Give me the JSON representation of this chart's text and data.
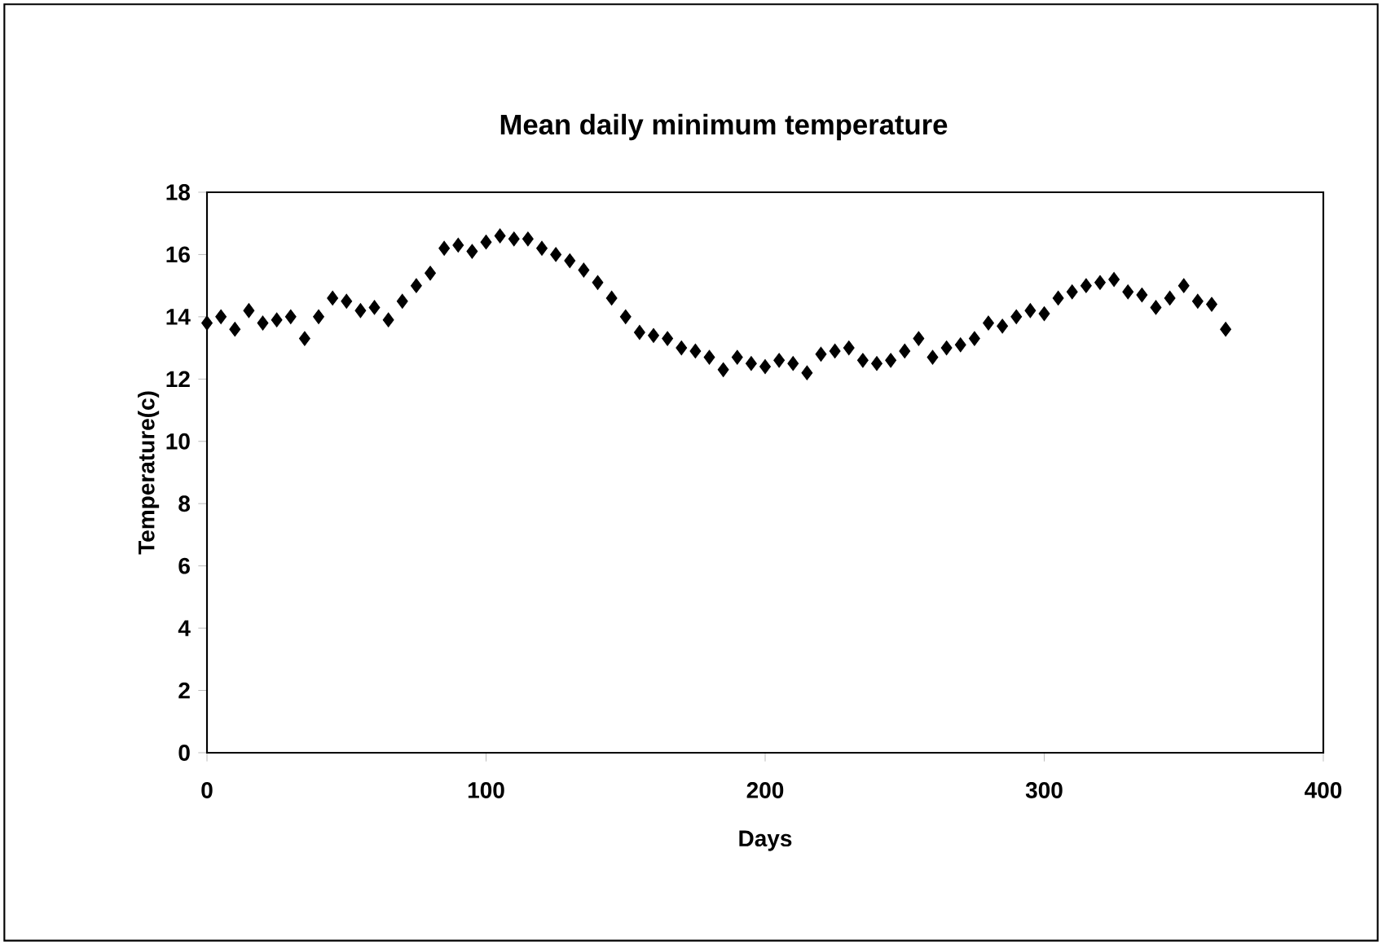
{
  "chart_data": {
    "type": "scatter",
    "title": "Mean daily minimum temperature",
    "xlabel": "Days",
    "ylabel": "Temperature(c)",
    "x": [
      0,
      5,
      10,
      15,
      20,
      25,
      30,
      35,
      40,
      45,
      50,
      55,
      60,
      65,
      70,
      75,
      80,
      85,
      90,
      95,
      100,
      105,
      110,
      115,
      120,
      125,
      130,
      135,
      140,
      145,
      150,
      155,
      160,
      165,
      170,
      175,
      180,
      185,
      190,
      195,
      200,
      205,
      210,
      215,
      220,
      225,
      230,
      235,
      240,
      245,
      250,
      255,
      260,
      265,
      270,
      275,
      280,
      285,
      290,
      295,
      300,
      305,
      310,
      315,
      320,
      325,
      330,
      335,
      340,
      345,
      350,
      355,
      360,
      365
    ],
    "series": [
      {
        "color": "#000000",
        "values": [
          13.8,
          14.0,
          13.6,
          14.2,
          13.8,
          13.9,
          14.0,
          13.3,
          14.0,
          14.6,
          14.5,
          14.2,
          14.3,
          13.9,
          14.5,
          15.0,
          15.4,
          16.2,
          16.3,
          16.1,
          16.4,
          16.6,
          16.5,
          16.5,
          16.2,
          16.0,
          15.8,
          15.5,
          15.1,
          14.6,
          14.0,
          13.5,
          13.4,
          13.3,
          13.0,
          12.9,
          12.7,
          12.3,
          12.7,
          12.5,
          12.4,
          12.6,
          12.5,
          12.2,
          12.8,
          12.9,
          13.0,
          12.6,
          12.5,
          12.6,
          12.9,
          13.3,
          12.7,
          13.0,
          13.1,
          13.3,
          13.8,
          13.7,
          14.0,
          14.2,
          14.1,
          14.6,
          14.8,
          15.0,
          15.1,
          15.2,
          14.8,
          14.7,
          14.3,
          14.6,
          15.0,
          14.5,
          14.4,
          13.6
        ]
      }
    ],
    "marker": "diamond",
    "xlim": [
      0,
      400
    ],
    "ylim": [
      0,
      18
    ],
    "xticks": [
      0,
      100,
      200,
      300,
      400
    ],
    "yticks": [
      0,
      2,
      4,
      6,
      8,
      10,
      12,
      14,
      16,
      18
    ]
  }
}
